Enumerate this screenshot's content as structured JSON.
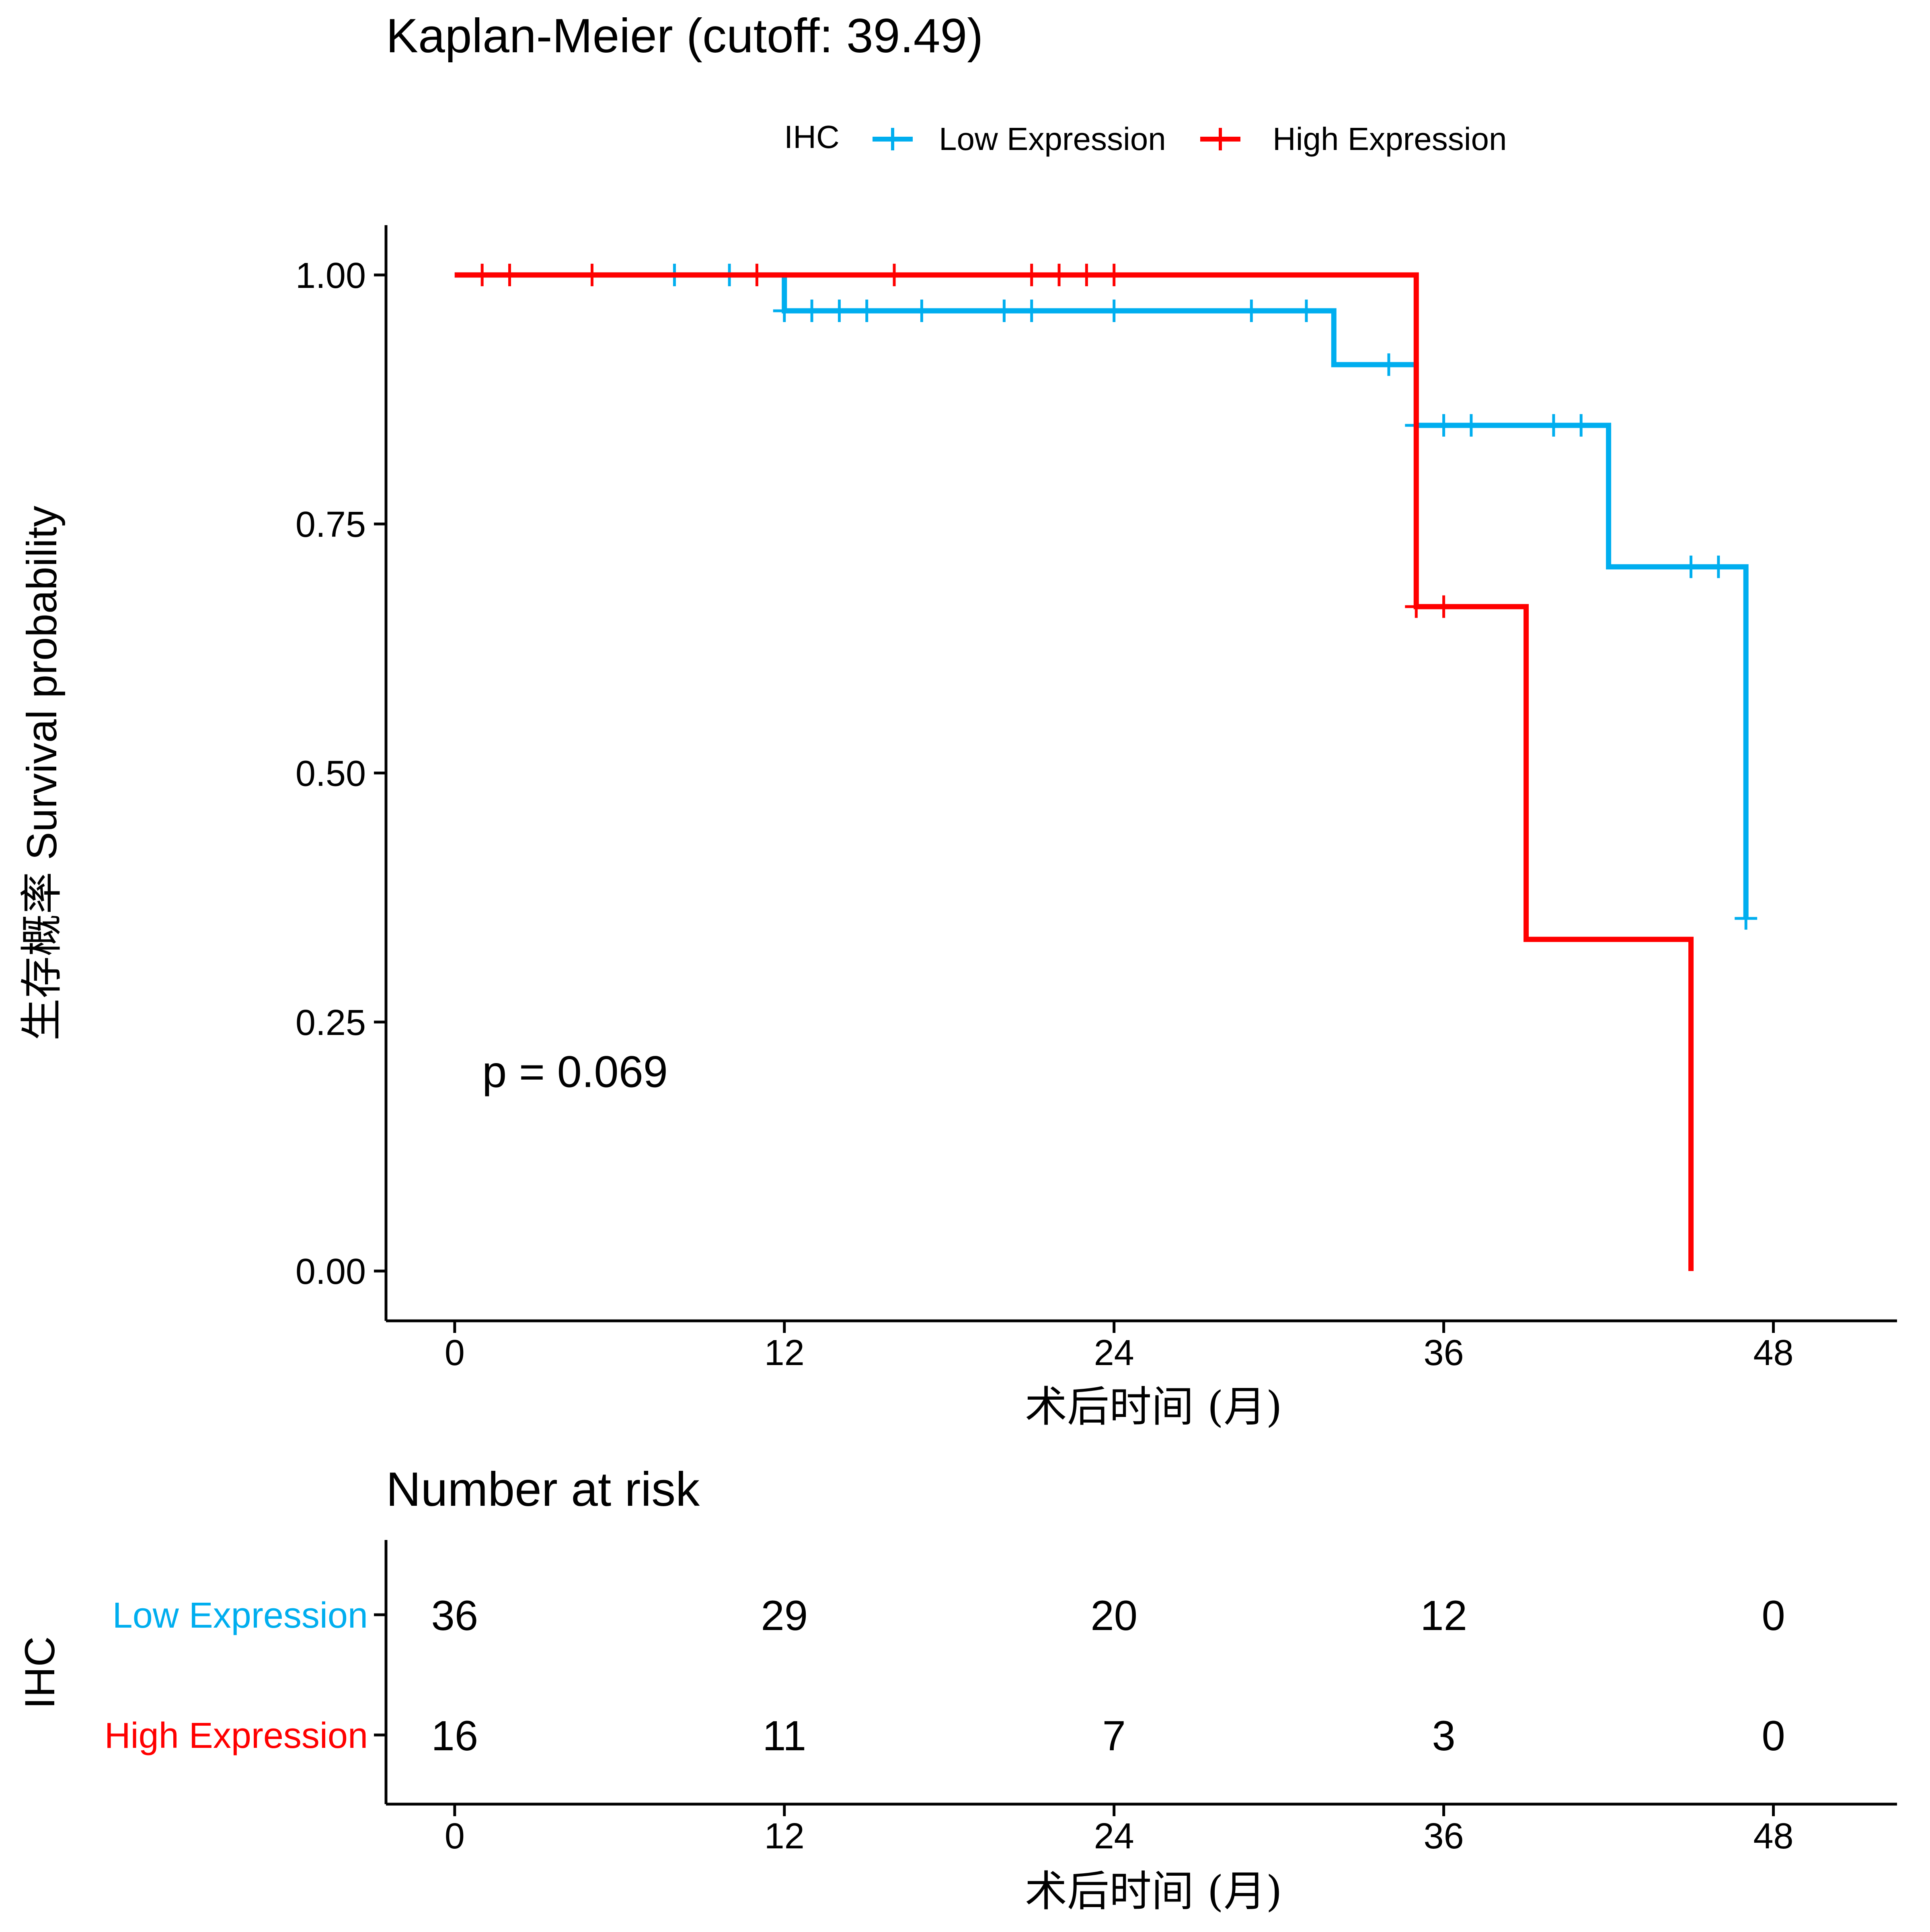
{
  "chart_data": [
    {
      "type": "line",
      "title": "Kaplan-Meier (cutoff: 39.49)",
      "legend": {
        "title": "IHC",
        "placement": "top",
        "entries": [
          "Low Expression",
          "High Expression"
        ]
      },
      "xlabel": "术后时间 (月)",
      "ylabel": "生存概率 Survival probability",
      "xlim": [
        -2.5,
        52.5
      ],
      "ylim": [
        -0.05,
        1.05
      ],
      "x_ticks": [
        0,
        12,
        24,
        36,
        48
      ],
      "x_tick_labels": [
        "0",
        "12",
        "24",
        "36",
        "48"
      ],
      "y_ticks": [
        0,
        0.25,
        0.5,
        0.75,
        1.0
      ],
      "y_tick_labels": [
        "0.00",
        "0.25",
        "0.50",
        "0.75",
        "1.00"
      ],
      "grid": false,
      "annotation": "p = 0.069",
      "annotation_pos": {
        "x": 1,
        "y": 0.2
      },
      "series": [
        {
          "name": "Low Expression",
          "color": "#00AEEF",
          "steps": [
            [
              0,
              1.0
            ],
            [
              12,
              0.964
            ],
            [
              32,
              0.91
            ],
            [
              35,
              0.849
            ],
            [
              42,
              0.707
            ],
            [
              47,
              0.354
            ]
          ],
          "end_x": 47,
          "censored": [
            [
              8,
              1.0
            ],
            [
              10,
              1.0
            ],
            [
              12,
              0.964
            ],
            [
              13,
              0.964
            ],
            [
              14,
              0.964
            ],
            [
              15,
              0.964
            ],
            [
              17,
              0.964
            ],
            [
              20,
              0.964
            ],
            [
              21,
              0.964
            ],
            [
              24,
              0.964
            ],
            [
              29,
              0.964
            ],
            [
              31,
              0.964
            ],
            [
              34,
              0.91
            ],
            [
              35,
              0.849
            ],
            [
              36,
              0.849
            ],
            [
              37,
              0.849
            ],
            [
              40,
              0.849
            ],
            [
              41,
              0.849
            ],
            [
              45,
              0.707
            ],
            [
              46,
              0.707
            ],
            [
              47,
              0.354
            ]
          ]
        },
        {
          "name": "High Expression",
          "color": "#FF0000",
          "steps": [
            [
              0,
              1.0
            ],
            [
              35,
              0.667
            ],
            [
              39,
              0.333
            ],
            [
              45,
              0.0
            ]
          ],
          "end_x": 45,
          "censored": [
            [
              1,
              1.0
            ],
            [
              2,
              1.0
            ],
            [
              5,
              1.0
            ],
            [
              11,
              1.0
            ],
            [
              16,
              1.0
            ],
            [
              21,
              1.0
            ],
            [
              22,
              1.0
            ],
            [
              23,
              1.0
            ],
            [
              24,
              1.0
            ],
            [
              35,
              0.667
            ],
            [
              36,
              0.667
            ]
          ]
        }
      ]
    },
    {
      "type": "table",
      "title": "Number at risk",
      "row_axis_label": "IHC",
      "xlabel": "术后时间 (月)",
      "xlim": [
        -2.5,
        52.5
      ],
      "x_ticks": [
        0,
        12,
        24,
        36,
        48
      ],
      "x_tick_labels": [
        "0",
        "12",
        "24",
        "36",
        "48"
      ],
      "rows": [
        {
          "name": "Low Expression",
          "color": "#00AEEF",
          "values": [
            "36",
            "29",
            "20",
            "12",
            "0"
          ]
        },
        {
          "name": "High Expression",
          "color": "#FF0000",
          "values": [
            "16",
            "11",
            "7",
            "3",
            "0"
          ]
        }
      ]
    }
  ]
}
